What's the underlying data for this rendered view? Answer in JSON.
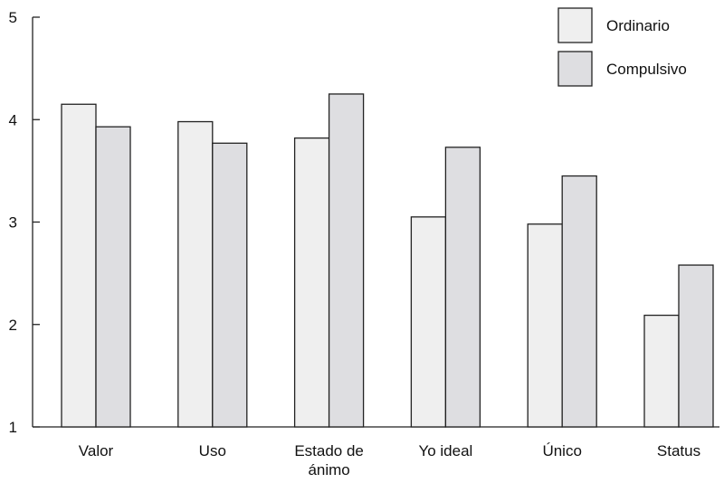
{
  "chart_data": {
    "type": "bar",
    "categories": [
      [
        "Valor"
      ],
      [
        "Uso"
      ],
      [
        "Estado de",
        "ánimo"
      ],
      [
        "Yo ideal"
      ],
      [
        "Único"
      ],
      [
        "Status"
      ]
    ],
    "series": [
      {
        "name": "Ordinario",
        "color": "#efefef",
        "values": [
          4.15,
          3.98,
          3.82,
          3.05,
          2.98,
          2.09
        ]
      },
      {
        "name": "Compulsivo",
        "color": "#dedee1",
        "values": [
          3.93,
          3.77,
          4.25,
          3.73,
          3.45,
          2.58
        ]
      }
    ],
    "ylim": [
      1,
      5
    ],
    "yticks": [
      1,
      2,
      3,
      4,
      5
    ],
    "title": "",
    "xlabel": "",
    "ylabel": "",
    "grid": false,
    "legend": "top-right"
  }
}
